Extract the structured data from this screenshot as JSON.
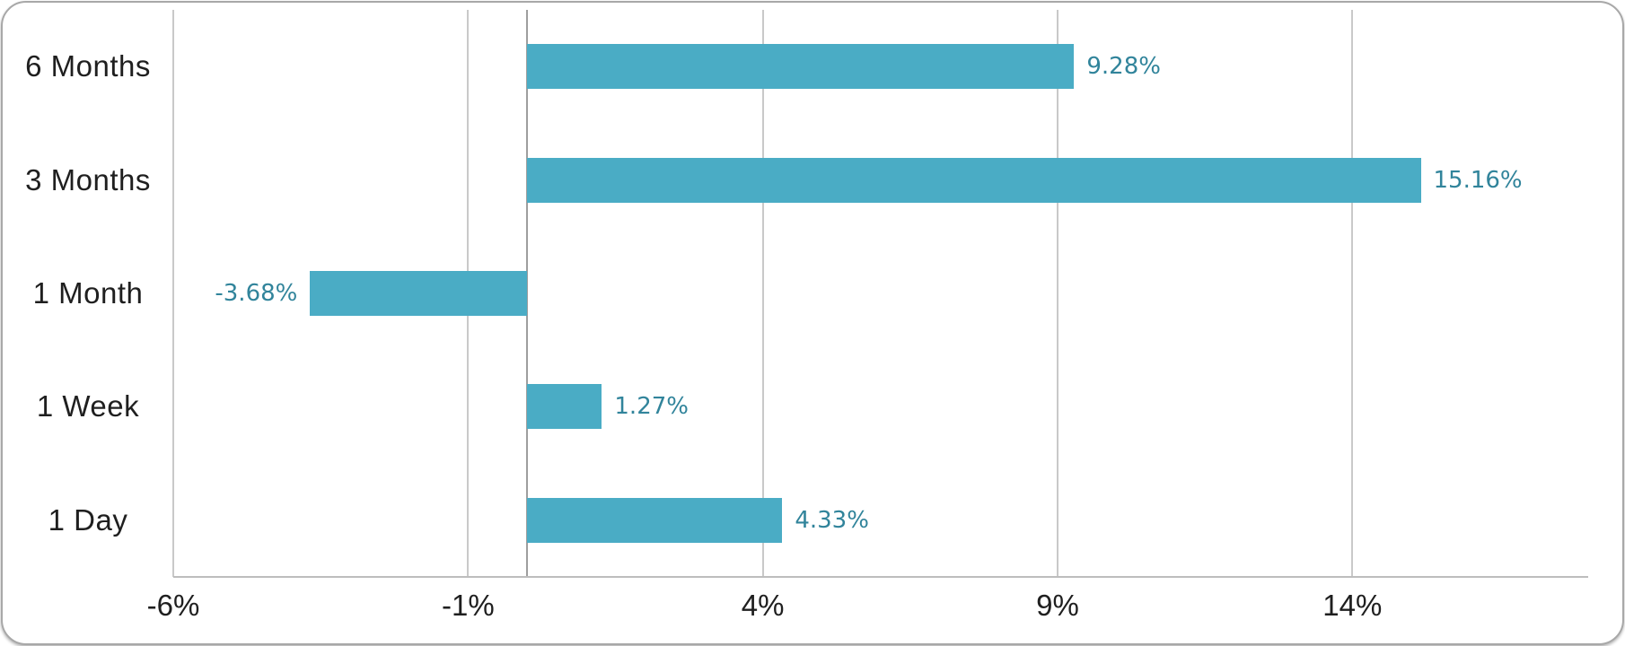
{
  "chart": {
    "background": "#ffffff",
    "frame_border_color": "#a8a8a8",
    "bar_color": "#4AACC5",
    "data_label_color": "#31849B",
    "gridline_color": "#c9c9c9",
    "zero_line_color": "#9e9e9e",
    "axis_line_color": "#bdbdbd",
    "category_label_color": "#1f1f1f",
    "tick_label_color": "#1f1f1f"
  },
  "chart_data": {
    "type": "bar",
    "orientation": "horizontal",
    "title": "",
    "xlabel": "",
    "ylabel": "",
    "categories": [
      "6 Months",
      "3 Months",
      "1 Month",
      "1 Week",
      "1 Day"
    ],
    "values": [
      9.28,
      15.16,
      -3.68,
      1.27,
      4.33
    ],
    "data_labels": [
      "9.28%",
      "15.16%",
      "-3.68%",
      "1.27%",
      "4.33%"
    ],
    "x_ticks": [
      {
        "value": -6,
        "label": "-6%"
      },
      {
        "value": -1,
        "label": "-1%"
      },
      {
        "value": 4,
        "label": "4%"
      },
      {
        "value": 9,
        "label": "9%"
      },
      {
        "value": 14,
        "label": "14%"
      }
    ],
    "xlim": [
      -6,
      18
    ],
    "grid": "vertical-gridlines-on",
    "legend": "none",
    "zero_line": 0
  }
}
